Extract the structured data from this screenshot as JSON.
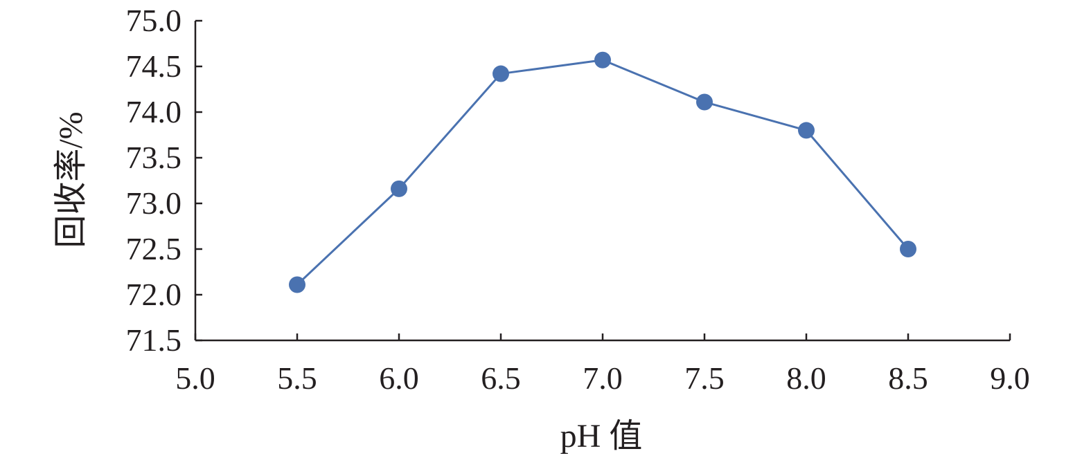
{
  "chart_data": {
    "type": "line",
    "title": "",
    "xlabel": "pH 值",
    "ylabel": "回收率/%",
    "xlim": [
      5.0,
      9.0
    ],
    "ylim": [
      71.5,
      75.0
    ],
    "x_ticks": [
      "5.0",
      "5.5",
      "6.0",
      "6.5",
      "7.0",
      "7.5",
      "8.0",
      "8.5",
      "9.0"
    ],
    "y_ticks": [
      "71.5",
      "72.0",
      "72.5",
      "73.0",
      "73.5",
      "74.0",
      "74.5",
      "75.0"
    ],
    "grid": false,
    "legend": "none",
    "series": [
      {
        "color": "#4a72b0",
        "x": [
          5.5,
          6.0,
          6.5,
          7.0,
          7.5,
          8.0,
          8.5
        ],
        "y": [
          72.11,
          73.16,
          74.42,
          74.57,
          74.11,
          73.8,
          72.5
        ]
      }
    ]
  }
}
